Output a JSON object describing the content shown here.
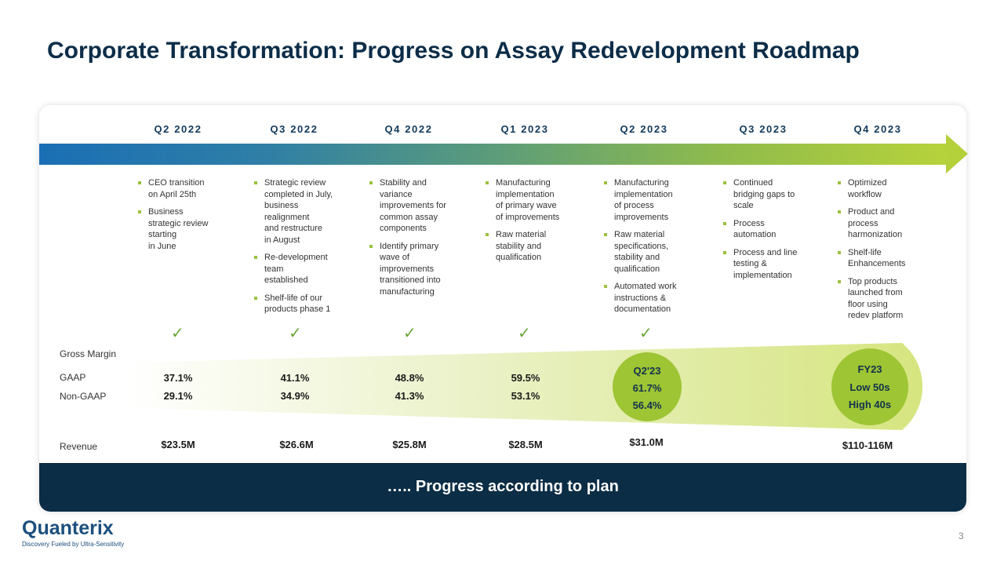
{
  "title": "Corporate Transformation: Progress on Assay Redevelopment Roadmap",
  "quarters": [
    {
      "label": "Q2 2022",
      "bullets": [
        "CEO transition\non April 25th",
        "Business\nstrategic review\nstarting\nin June"
      ],
      "check": "✓",
      "gaap": "37.1%",
      "nongaap": "29.1%",
      "revenue": "$23.5M"
    },
    {
      "label": "Q3 2022",
      "bullets": [
        "Strategic review\ncompleted in July,\nbusiness\nrealignment\nand restructure\nin August",
        "Re-development\nteam\nestablished",
        "Shelf-life of our\nproducts phase 1"
      ],
      "check": "✓",
      "gaap": "41.1%",
      "nongaap": "34.9%",
      "revenue": "$26.6M"
    },
    {
      "label": "Q4 2022",
      "bullets": [
        "Stability and\nvariance\nimprovements for\ncommon assay\ncomponents",
        "Identify primary\nwave of\nimprovements\ntransitioned into\nmanufacturing"
      ],
      "check": "✓",
      "gaap": "48.8%",
      "nongaap": "41.3%",
      "revenue": "$25.8M"
    },
    {
      "label": "Q1 2023",
      "bullets": [
        "Manufacturing\nimplementation\nof primary wave\nof improvements",
        "Raw material\nstability and\nqualification"
      ],
      "check": "✓",
      "gaap": "59.5%",
      "nongaap": "53.1%",
      "revenue": "$28.5M"
    },
    {
      "label": "Q2 2023",
      "bullets": [
        "Manufacturing\nimplementation\nof process\nimprovements",
        "Raw material\nspecifications,\nstability and\nqualification",
        "Automated work\ninstructions &\ndocumentation"
      ],
      "check": "✓",
      "circle": [
        "Q2'23",
        "61.7%",
        "56.4%"
      ],
      "revenue": "$31.0M"
    },
    {
      "label": "Q3 2023",
      "bullets": [
        "Continued\nbridging gaps to\nscale",
        "Process\nautomation",
        "Process and line\ntesting &\nimplementation"
      ]
    },
    {
      "label": "Q4 2023",
      "bullets": [
        "Optimized\nworkflow",
        "Product and\nprocess\nharmonization",
        "Shelf-life\nEnhancements",
        "Top products\nlaunched from\nfloor using\nredev platform"
      ],
      "circle": [
        "FY23",
        "Low 50s",
        "High 40s"
      ],
      "revenue": "$110-116M"
    }
  ],
  "row_labels": {
    "gross_margin": "Gross Margin",
    "gaap": "GAAP",
    "nongaap": "Non-GAAP",
    "revenue": "Revenue"
  },
  "banner": "….. Progress according to plan",
  "logo": {
    "name": "Quanterix",
    "tagline": "Discovery Fueled by Ultra-Sensitivity"
  },
  "page_number": "3",
  "colors": {
    "navy": "#0b2d46",
    "green": "#9dc534",
    "blue": "#1a6fb5"
  }
}
